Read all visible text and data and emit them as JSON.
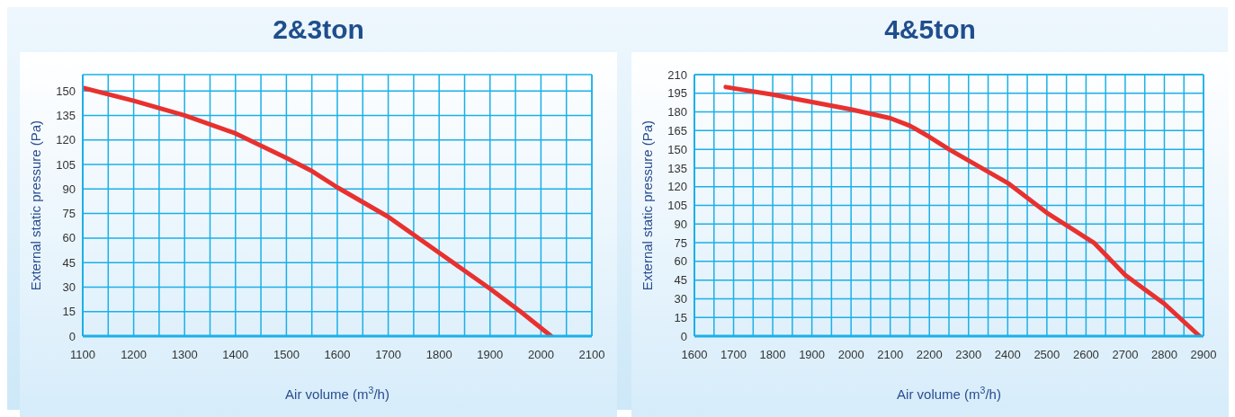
{
  "chart_data": [
    {
      "type": "line",
      "title": "2&3ton",
      "xlabel": "Air volume (m$^{3}$/h)",
      "ylabel": "External static pressure (Pa)",
      "color": "#e8312f",
      "grid": true,
      "x": [
        1100,
        1200,
        1300,
        1400,
        1500,
        1550,
        1600,
        1700,
        1800,
        1900,
        1960,
        2020
      ],
      "values": [
        152,
        144,
        135,
        124,
        109,
        101,
        91,
        73,
        51,
        29,
        15,
        0
      ],
      "xlim": [
        1100,
        2100
      ],
      "ylim": [
        0,
        160
      ],
      "xticks": [
        1100,
        {
          "value": 1150,
          "label": null
        },
        1200,
        {
          "value": 1250,
          "label": null
        },
        1300,
        {
          "value": 1350,
          "label": null
        },
        1400,
        {
          "value": 1450,
          "label": null
        },
        1500,
        {
          "value": 1550,
          "label": null
        },
        1600,
        {
          "value": 1650,
          "label": null
        },
        1700,
        {
          "value": 1750,
          "label": null
        },
        1800,
        {
          "value": 1850,
          "label": null
        },
        1900,
        {
          "value": 1950,
          "label": null
        },
        2000,
        {
          "value": 2050,
          "label": null
        },
        2100
      ],
      "yticks": [
        0,
        15,
        30,
        45,
        60,
        75,
        90,
        105,
        120,
        135,
        150
      ]
    },
    {
      "type": "line",
      "title": "4&5ton",
      "xlabel": "Air volume (m$^{3}$/h)",
      "ylabel": "External static pressure (Pa)",
      "color": "#e8312f",
      "grid": true,
      "x": [
        1680,
        1800,
        1900,
        2000,
        2100,
        2150,
        2200,
        2250,
        2300,
        2400,
        2500,
        2600,
        2620,
        2700,
        2800,
        2890
      ],
      "values": [
        200,
        194,
        188,
        182,
        175,
        169,
        160,
        150,
        141,
        123,
        99,
        79,
        75,
        49,
        26,
        0
      ],
      "xlim": [
        1600,
        2900
      ],
      "ylim": [
        0,
        210
      ],
      "xticks": [
        1600,
        {
          "value": 1650,
          "label": null
        },
        1700,
        {
          "value": 1750,
          "label": null
        },
        1800,
        {
          "value": 1850,
          "label": null
        },
        1900,
        {
          "value": 1950,
          "label": null
        },
        2000,
        {
          "value": 2050,
          "label": null
        },
        2100,
        {
          "value": 2150,
          "label": null
        },
        2200,
        {
          "value": 2250,
          "label": null
        },
        2300,
        {
          "value": 2350,
          "label": null
        },
        2400,
        {
          "value": 2450,
          "label": null
        },
        2500,
        {
          "value": 2550,
          "label": null
        },
        2600,
        {
          "value": 2650,
          "label": null
        },
        2700,
        {
          "value": 2750,
          "label": null
        },
        2800,
        {
          "value": 2850,
          "label": null
        },
        2900
      ],
      "yticks": [
        0,
        15,
        30,
        45,
        60,
        75,
        90,
        105,
        120,
        135,
        150,
        165,
        180,
        195,
        210
      ]
    }
  ]
}
